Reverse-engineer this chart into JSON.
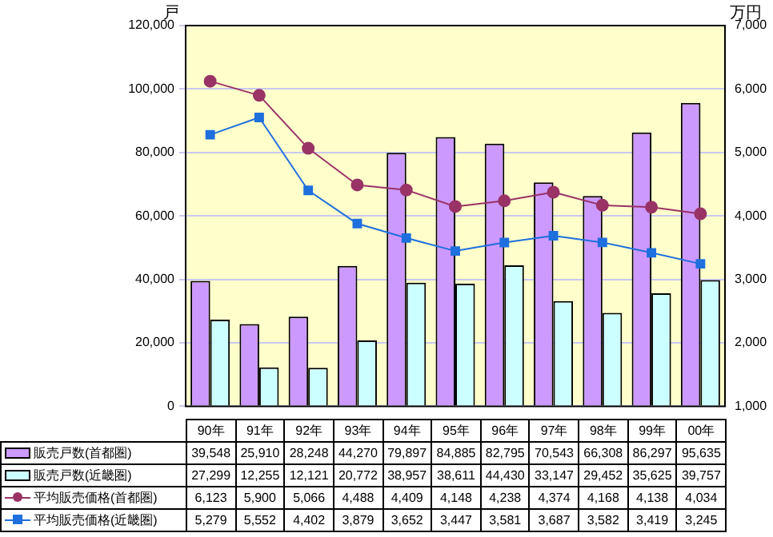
{
  "chart_data": {
    "type": "bar",
    "ylabel": "戸",
    "y2label": "万円",
    "categories": [
      "90年",
      "91年",
      "92年",
      "93年",
      "94年",
      "95年",
      "96年",
      "97年",
      "98年",
      "99年",
      "00年"
    ],
    "series": [
      {
        "name": "販売戸数(首都圏)",
        "color": "#cc99ff",
        "values": [
          39548,
          25910,
          28248,
          44270,
          79897,
          84885,
          82795,
          70543,
          66308,
          86297,
          95635
        ],
        "value_labels": [
          "39,548",
          "25,910",
          "28,248",
          "44,270",
          "79,897",
          "84,885",
          "82,795",
          "70,543",
          "66,308",
          "86,297",
          "95,635"
        ]
      },
      {
        "name": "販売戸数(近畿圏)",
        "color": "#ccffff",
        "values": [
          27299,
          12255,
          12121,
          20772,
          38957,
          38611,
          44430,
          33147,
          29452,
          35625,
          39757
        ],
        "value_labels": [
          "27,299",
          "12,255",
          "12,121",
          "20,772",
          "38,957",
          "38,611",
          "44,430",
          "33,147",
          "29,452",
          "35,625",
          "39,757"
        ]
      },
      {
        "name": "平均販売価格(首都圏)",
        "type": "line",
        "axis": "y2",
        "marker": "circle",
        "color": "#993366",
        "values": [
          6123,
          5900,
          5066,
          4488,
          4409,
          4148,
          4238,
          4374,
          4168,
          4138,
          4034
        ],
        "value_labels": [
          "6,123",
          "5,900",
          "5,066",
          "4,488",
          "4,409",
          "4,148",
          "4,238",
          "4,374",
          "4,168",
          "4,138",
          "4,034"
        ]
      },
      {
        "name": "平均販売価格(近畿圏)",
        "type": "line",
        "axis": "y2",
        "marker": "square",
        "color": "#1f6fde",
        "values": [
          5279,
          5552,
          4402,
          3879,
          3652,
          3447,
          3581,
          3687,
          3582,
          3419,
          3245
        ],
        "value_labels": [
          "5,279",
          "5,552",
          "4,402",
          "3,879",
          "3,652",
          "3,447",
          "3,581",
          "3,687",
          "3,582",
          "3,419",
          "3,245"
        ]
      }
    ],
    "ylim": [
      0,
      120000
    ],
    "yticks": [
      {
        "value": 0,
        "label": "0"
      },
      {
        "value": 20000,
        "label": "20,000"
      },
      {
        "value": 40000,
        "label": "40,000"
      },
      {
        "value": 60000,
        "label": "60,000"
      },
      {
        "value": 80000,
        "label": "80,000"
      },
      {
        "value": 100000,
        "label": "100,000"
      },
      {
        "value": 120000,
        "label": "120,000"
      }
    ],
    "y2lim": [
      1000,
      7000
    ],
    "y2ticks": [
      {
        "value": 1000,
        "label": "1,000"
      },
      {
        "value": 2000,
        "label": "2,000"
      },
      {
        "value": 3000,
        "label": "3,000"
      },
      {
        "value": 4000,
        "label": "4,000"
      },
      {
        "value": 5000,
        "label": "5,000"
      },
      {
        "value": 6000,
        "label": "6,000"
      },
      {
        "value": 7000,
        "label": "7,000"
      }
    ],
    "grid": "y",
    "legend": "bottom"
  }
}
